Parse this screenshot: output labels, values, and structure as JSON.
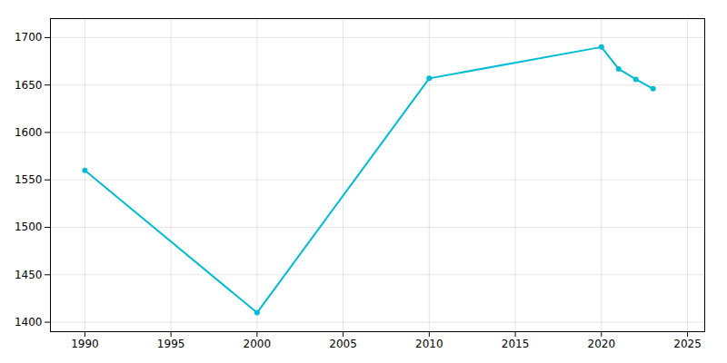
{
  "chart_data": {
    "type": "line",
    "x": [
      1990,
      2000,
      2010,
      2020,
      2021,
      2022,
      2023
    ],
    "values": [
      1560,
      1410,
      1657,
      1690,
      1667,
      1656,
      1646
    ],
    "color": "#00BCD4",
    "marker": "circle",
    "xlim": [
      1988,
      2026
    ],
    "ylim": [
      1390,
      1720
    ],
    "xticks": [
      1990,
      1995,
      2000,
      2005,
      2010,
      2015,
      2020,
      2025
    ],
    "yticks": [
      1400,
      1450,
      1500,
      1550,
      1600,
      1650,
      1700
    ],
    "grid": true
  }
}
